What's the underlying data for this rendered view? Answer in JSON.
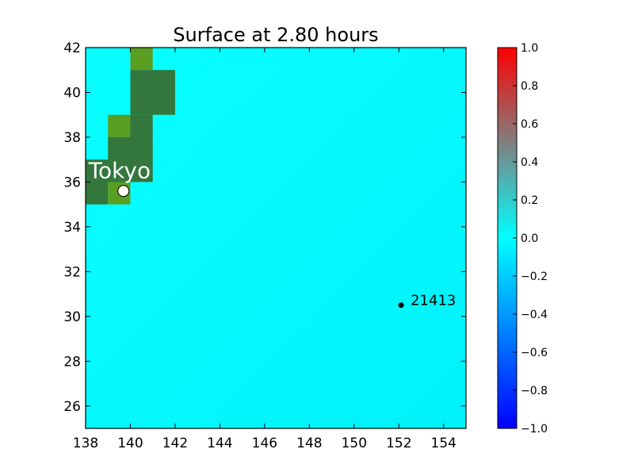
{
  "chart_data": {
    "type": "heatmap",
    "title": "Surface at 2.80 hours",
    "xlabel": "",
    "ylabel": "",
    "xlim": [
      138,
      155
    ],
    "ylim": [
      25,
      42
    ],
    "x_ticks": [
      138,
      140,
      142,
      144,
      146,
      148,
      150,
      152,
      154
    ],
    "x_tick_labels": [
      "138",
      "140",
      "142",
      "144",
      "146",
      "148",
      "150",
      "152",
      "154"
    ],
    "y_ticks": [
      26,
      28,
      30,
      32,
      34,
      36,
      38,
      40,
      42
    ],
    "y_tick_labels": [
      "26",
      "28",
      "30",
      "32",
      "34",
      "36",
      "38",
      "40",
      "42"
    ],
    "grid": false,
    "background_value": 0.0,
    "land_cells": [
      {
        "x0": 140,
        "x1": 141,
        "y0": 41,
        "y1": 42,
        "color": "#5a9e22"
      },
      {
        "x0": 140,
        "x1": 142,
        "y0": 39,
        "y1": 41,
        "color": "#33773c"
      },
      {
        "x0": 139,
        "x1": 140,
        "y0": 38,
        "y1": 39,
        "color": "#5a9e22"
      },
      {
        "x0": 140,
        "x1": 141,
        "y0": 38,
        "y1": 39,
        "color": "#33773c"
      },
      {
        "x0": 139,
        "x1": 141,
        "y0": 36,
        "y1": 38,
        "color": "#33773c"
      },
      {
        "x0": 138,
        "x1": 139,
        "y0": 35,
        "y1": 37,
        "color": "#33773c"
      },
      {
        "x0": 139,
        "x1": 140,
        "y0": 36,
        "y1": 37,
        "color": "#33773c"
      },
      {
        "x0": 139,
        "x1": 140,
        "y0": 35,
        "y1": 36,
        "color": "#5a9e22"
      }
    ],
    "annotations": [
      {
        "label": "Tokyo",
        "x": 139.69,
        "y": 35.6,
        "marker": "white-circle"
      },
      {
        "label": "21413",
        "x": 152.1,
        "y": 30.5,
        "marker": "black-dot"
      }
    ],
    "colorbar": {
      "range": [
        -1.0,
        1.0
      ],
      "ticks": [
        1.0,
        0.8,
        0.6,
        0.4,
        0.2,
        0.0,
        -0.2,
        -0.4,
        -0.6,
        -0.8,
        -1.0
      ],
      "tick_labels": [
        "1.0",
        "0.8",
        "0.6",
        "0.4",
        "0.2",
        "0.0",
        "−0.2",
        "−0.4",
        "−0.6",
        "−0.8",
        "−1.0"
      ],
      "stops": [
        {
          "value": -1.0,
          "color": "#0000ff"
        },
        {
          "value": 0.0,
          "color": "#00ffff"
        },
        {
          "value": 0.5,
          "color": "#808080"
        },
        {
          "value": 1.0,
          "color": "#ff0000"
        }
      ]
    },
    "colors": {
      "water": "#00f6fc",
      "water_light": "#08ffff",
      "land_dark": "#33773c",
      "land_light": "#5a9e22"
    }
  }
}
